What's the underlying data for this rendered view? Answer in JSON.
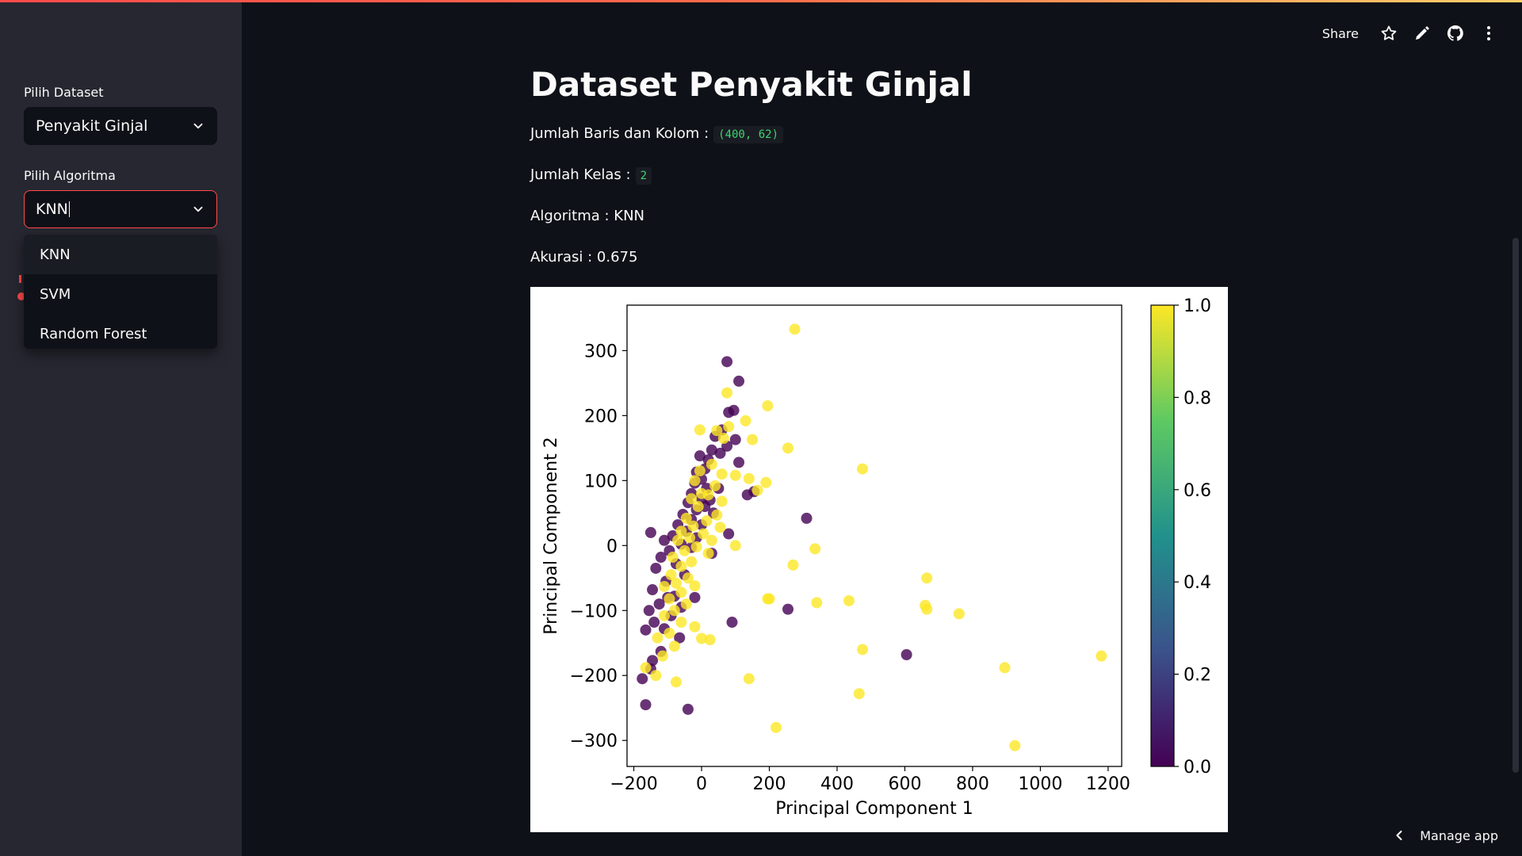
{
  "header": {
    "share_label": "Share",
    "icons": [
      "star-icon",
      "pencil-icon",
      "github-icon",
      "more-vertical-icon"
    ]
  },
  "sidebar": {
    "dataset_label": "Pilih Dataset",
    "dataset_value": "Penyakit Ginjal",
    "algorithm_label": "Pilih Algoritma",
    "algorithm_value": "KNN",
    "algorithm_options": [
      "KNN",
      "SVM",
      "Random Forest"
    ],
    "highlighted_option": "KNN"
  },
  "main": {
    "title": "Dataset Penyakit Ginjal",
    "shape_label": "Jumlah Baris dan Kolom :",
    "shape_value": "(400, 62)",
    "classes_label": "Jumlah Kelas :",
    "classes_value": "2",
    "algorithm_text": "Algoritma : KNN",
    "accuracy_text": "Akurasi : 0.675"
  },
  "footer": {
    "manage_label": "Manage app"
  },
  "colors": {
    "accent": "#ff4b4b",
    "class0": "#440154",
    "class1": "#fde725"
  },
  "chart_data": {
    "type": "scatter",
    "xlabel": "Principal Component 1",
    "ylabel": "Principal Component 2",
    "xlim": [
      -220,
      1240
    ],
    "ylim": [
      -340,
      370
    ],
    "xticks": [
      -200,
      0,
      200,
      400,
      600,
      800,
      1000,
      1200
    ],
    "yticks": [
      -300,
      -200,
      -100,
      0,
      100,
      200,
      300
    ],
    "xtick_labels": [
      "−200",
      "0",
      "200",
      "400",
      "600",
      "800",
      "1000",
      "1200"
    ],
    "ytick_labels": [
      "−300",
      "−200",
      "−100",
      "0",
      "100",
      "200",
      "300"
    ],
    "colorbar": {
      "colormap": "viridis",
      "range": [
        0.0,
        1.0
      ],
      "ticks": [
        0.0,
        0.2,
        0.4,
        0.6,
        0.8,
        1.0
      ],
      "tick_labels": [
        "0.0",
        "0.2",
        "0.4",
        "0.6",
        "0.8",
        "1.0"
      ]
    },
    "series": [
      {
        "class": 0,
        "points": [
          [
            75,
            283
          ],
          [
            110,
            253
          ],
          [
            95,
            208
          ],
          [
            80,
            205
          ],
          [
            60,
            178
          ],
          [
            40,
            168
          ],
          [
            100,
            163
          ],
          [
            75,
            153
          ],
          [
            30,
            147
          ],
          [
            55,
            142
          ],
          [
            20,
            132
          ],
          [
            -5,
            138
          ],
          [
            10,
            118
          ],
          [
            -15,
            113
          ],
          [
            110,
            128
          ],
          [
            0,
            102
          ],
          [
            -20,
            96
          ],
          [
            15,
            88
          ],
          [
            50,
            88
          ],
          [
            -30,
            80
          ],
          [
            0,
            72
          ],
          [
            -40,
            66
          ],
          [
            25,
            70
          ],
          [
            10,
            60
          ],
          [
            -15,
            55
          ],
          [
            -55,
            48
          ],
          [
            35,
            50
          ],
          [
            -30,
            40
          ],
          [
            0,
            32
          ],
          [
            -70,
            32
          ],
          [
            -45,
            22
          ],
          [
            -150,
            20
          ],
          [
            -85,
            15
          ],
          [
            -15,
            12
          ],
          [
            80,
            18
          ],
          [
            -110,
            8
          ],
          [
            -60,
            2
          ],
          [
            -30,
            -3
          ],
          [
            -95,
            -8
          ],
          [
            -120,
            -18
          ],
          [
            30,
            -12
          ],
          [
            -75,
            -28
          ],
          [
            -135,
            -35
          ],
          [
            -50,
            -45
          ],
          [
            -105,
            -55
          ],
          [
            -145,
            -68
          ],
          [
            -80,
            -78
          ],
          [
            -20,
            -80
          ],
          [
            -125,
            -90
          ],
          [
            -155,
            -100
          ],
          [
            -90,
            -108
          ],
          [
            -140,
            -118
          ],
          [
            -110,
            -128
          ],
          [
            -65,
            -142
          ],
          [
            -165,
            -130
          ],
          [
            -120,
            -163
          ],
          [
            -145,
            -177
          ],
          [
            -150,
            -190
          ],
          [
            -175,
            -205
          ],
          [
            90,
            -118
          ],
          [
            255,
            -98
          ],
          [
            310,
            42
          ],
          [
            605,
            -168
          ],
          [
            -40,
            -252
          ],
          [
            -165,
            -245
          ],
          [
            155,
            83
          ],
          [
            135,
            78
          ],
          [
            -60,
            -95
          ],
          [
            -100,
            -80
          ]
        ]
      },
      {
        "class": 1,
        "points": [
          [
            275,
            333
          ],
          [
            75,
            235
          ],
          [
            195,
            215
          ],
          [
            130,
            192
          ],
          [
            80,
            183
          ],
          [
            45,
            177
          ],
          [
            -5,
            178
          ],
          [
            65,
            165
          ],
          [
            150,
            163
          ],
          [
            255,
            150
          ],
          [
            30,
            125
          ],
          [
            -5,
            115
          ],
          [
            60,
            110
          ],
          [
            100,
            108
          ],
          [
            140,
            103
          ],
          [
            -20,
            100
          ],
          [
            190,
            97
          ],
          [
            475,
            118
          ],
          [
            40,
            92
          ],
          [
            0,
            80
          ],
          [
            165,
            85
          ],
          [
            20,
            78
          ],
          [
            -30,
            72
          ],
          [
            60,
            68
          ],
          [
            -10,
            60
          ],
          [
            45,
            47
          ],
          [
            -45,
            42
          ],
          [
            15,
            38
          ],
          [
            -25,
            30
          ],
          [
            55,
            28
          ],
          [
            -60,
            22
          ],
          [
            5,
            18
          ],
          [
            -35,
            12
          ],
          [
            30,
            8
          ],
          [
            -70,
            8
          ],
          [
            -15,
            -2
          ],
          [
            -50,
            -8
          ],
          [
            20,
            -12
          ],
          [
            -85,
            -18
          ],
          [
            -30,
            -25
          ],
          [
            -60,
            -32
          ],
          [
            -90,
            -45
          ],
          [
            -40,
            -50
          ],
          [
            -75,
            -58
          ],
          [
            -110,
            -63
          ],
          [
            -20,
            -62
          ],
          [
            -60,
            -72
          ],
          [
            -95,
            -82
          ],
          [
            -45,
            -90
          ],
          [
            -80,
            -100
          ],
          [
            -110,
            -108
          ],
          [
            -60,
            -118
          ],
          [
            -20,
            -125
          ],
          [
            -95,
            -135
          ],
          [
            -130,
            -142
          ],
          [
            0,
            -143
          ],
          [
            25,
            -145
          ],
          [
            -80,
            -155
          ],
          [
            -115,
            -170
          ],
          [
            -165,
            -188
          ],
          [
            -75,
            -210
          ],
          [
            -135,
            -200
          ],
          [
            140,
            -205
          ],
          [
            220,
            -280
          ],
          [
            335,
            -5
          ],
          [
            270,
            -30
          ],
          [
            340,
            -88
          ],
          [
            435,
            -85
          ],
          [
            665,
            -50
          ],
          [
            660,
            -92
          ],
          [
            665,
            -98
          ],
          [
            760,
            -105
          ],
          [
            195,
            -82
          ],
          [
            475,
            -160
          ],
          [
            465,
            -228
          ],
          [
            895,
            -188
          ],
          [
            925,
            -308
          ],
          [
            1180,
            -170
          ],
          [
            200,
            -82
          ],
          [
            100,
            0
          ]
        ]
      }
    ]
  }
}
